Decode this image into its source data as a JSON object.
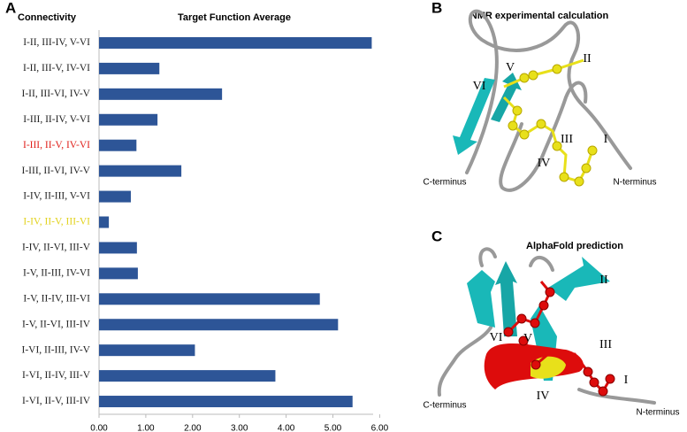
{
  "chart_data": {
    "type": "bar",
    "orientation": "horizontal",
    "panel_label": "A",
    "category_header": "Connectivity",
    "title": "Target Function Average",
    "categories": [
      "I-II, III-IV, V-VI",
      "I-II, III-V, IV-VI",
      "I-II, III-VI, IV-V",
      "I-III, II-IV, V-VI",
      "I-III, II-V, IV-VI",
      "I-III, II-VI, IV-V",
      "I-IV, II-III, V-VI",
      "I-IV, II-V, III-VI",
      "I-IV, II-VI, III-V",
      "I-V, II-III, IV-VI",
      "I-V, II-IV, III-VI",
      "I-V, II-VI, III-IV",
      "I-VI, II-III, IV-V",
      "I-VI, II-IV, III-V",
      "I-VI, II-V, III-IV"
    ],
    "category_colors": [
      "#222222",
      "#222222",
      "#222222",
      "#222222",
      "#e0201b",
      "#222222",
      "#222222",
      "#e2d21c",
      "#222222",
      "#222222",
      "#222222",
      "#222222",
      "#222222",
      "#222222",
      "#222222"
    ],
    "values": [
      5.83,
      1.29,
      2.63,
      1.25,
      0.8,
      1.76,
      0.68,
      0.21,
      0.81,
      0.83,
      4.72,
      5.11,
      2.05,
      3.77,
      5.42
    ],
    "color": "#2d5597",
    "xlim": [
      0,
      6.2
    ],
    "xticks": [
      {
        "value": 0,
        "label": "0.00"
      },
      {
        "value": 1,
        "label": "1.00"
      },
      {
        "value": 2,
        "label": "2.00"
      },
      {
        "value": 3,
        "label": "3.00"
      },
      {
        "value": 4,
        "label": "4.00"
      },
      {
        "value": 5,
        "label": "5.00"
      },
      {
        "value": 6,
        "label": "6.00"
      }
    ],
    "grid": false
  },
  "structures": [
    {
      "panel_label": "B",
      "title": "NMR experimental calculation",
      "labels": [
        "V",
        "II",
        "VI",
        "III",
        "I",
        "IV"
      ],
      "c_terminus": "C-terminus",
      "n_terminus": "N-terminus"
    },
    {
      "panel_label": "C",
      "title": "AlphaFold prediction",
      "labels": [
        "II",
        "VI",
        "V",
        "III",
        "I",
        "IV"
      ],
      "c_terminus": "C-terminus",
      "n_terminus": "N-terminus"
    }
  ]
}
